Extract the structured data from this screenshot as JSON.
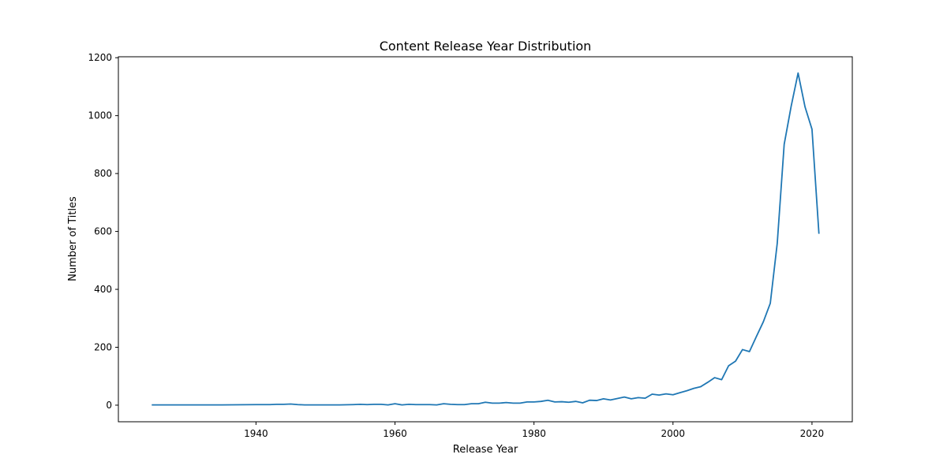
{
  "chart_data": {
    "type": "line",
    "title": "Content Release Year Distribution",
    "xlabel": "Release Year",
    "ylabel": "Number of Titles",
    "xlim": [
      1920.2,
      2025.8
    ],
    "ylim": [
      -57.3,
      1203.3
    ],
    "xticks": [
      1940,
      1960,
      1980,
      2000,
      2020
    ],
    "yticks": [
      0,
      200,
      400,
      600,
      800,
      1000,
      1200
    ],
    "grid": false,
    "line_color": "#1f77b4",
    "series": [
      {
        "x": [
          1925,
          1930,
          1935,
          1940,
          1942,
          1943,
          1944,
          1945,
          1946,
          1947,
          1948,
          1950,
          1952,
          1954,
          1955,
          1956,
          1957,
          1958,
          1959,
          1960,
          1961,
          1962,
          1963,
          1964,
          1965,
          1966,
          1967,
          1968,
          1969,
          1970,
          1971,
          1972,
          1973,
          1974,
          1975,
          1976,
          1977,
          1978,
          1979,
          1980,
          1981,
          1982,
          1983,
          1984,
          1985,
          1986,
          1987,
          1988,
          1989,
          1990,
          1991,
          1992,
          1993,
          1994,
          1995,
          1996,
          1997,
          1998,
          1999,
          2000,
          2001,
          2002,
          2003,
          2004,
          2005,
          2006,
          2007,
          2008,
          2009,
          2010,
          2011,
          2012,
          2013,
          2014,
          2015,
          2016,
          2017,
          2018,
          2019,
          2020,
          2021
        ],
        "values": [
          1,
          1,
          1,
          2,
          2,
          3,
          3,
          4,
          2,
          1,
          1,
          1,
          1,
          2,
          3,
          2,
          3,
          3,
          1,
          5,
          1,
          3,
          2,
          2,
          2,
          1,
          5,
          3,
          2,
          2,
          5,
          5,
          10,
          7,
          7,
          9,
          7,
          7,
          11,
          11,
          13,
          17,
          11,
          12,
          10,
          13,
          8,
          17,
          16,
          22,
          18,
          23,
          28,
          22,
          26,
          24,
          38,
          35,
          39,
          36,
          43,
          50,
          58,
          64,
          79,
          95,
          88,
          136,
          152,
          192,
          185,
          237,
          288,
          352,
          559,
          901,
          1032,
          1147,
          1030,
          953,
          592
        ]
      }
    ]
  }
}
